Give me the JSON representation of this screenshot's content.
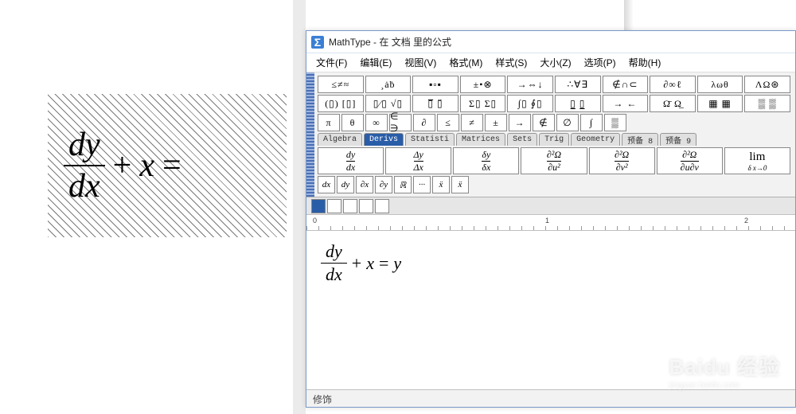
{
  "document": {
    "equation": {
      "numerator": "dy",
      "denominator": "dx",
      "op1": "+",
      "term": "x",
      "eq": "="
    }
  },
  "window": {
    "title": "MathType - 在 文档 里的公式",
    "menu": {
      "file": "文件(F)",
      "edit": "编辑(E)",
      "view": "视图(V)",
      "format": "格式(M)",
      "style": "样式(S)",
      "size": "大小(Z)",
      "options": "选项(P)",
      "help": "帮助(H)"
    },
    "palette_row1": [
      "≤≠≈",
      "¸ȧḃ",
      "▪▫▪",
      "±•⊗",
      "→⇔↓",
      "∴∀∃",
      "∉∩⊂",
      "∂∞ℓ",
      "λωθ",
      "ΛΩ⊛"
    ],
    "palette_row2": [
      "(▯) [▯]",
      "▯⁄▯ √▯",
      "▯̅ ▯̈",
      "Σ▯ Σ▯",
      "∫▯ ∮▯",
      "▯̲ ▯̲",
      "→ ←",
      "Ω̄ Ω̲",
      "▦ ▦",
      "▒ ▒"
    ],
    "palette_row3": [
      "π",
      "θ",
      "∞",
      "∈ ∋",
      "∂",
      "≤",
      "≠",
      "±",
      "→",
      "∉",
      "∅",
      "∫",
      "▒"
    ],
    "tabs": [
      "Algebra",
      "Derivs",
      "Statisti",
      "Matrices",
      "Sets",
      "Trig",
      "Geometry",
      "预备 8",
      "预备 9"
    ],
    "active_tab": 1,
    "templates": [
      {
        "num": "dy",
        "den": "dx"
      },
      {
        "num": "Δy",
        "den": "Δx"
      },
      {
        "num": "δy",
        "den": "δx"
      },
      {
        "num": "∂²Ω",
        "den": "∂u²"
      },
      {
        "num": "∂²Ω",
        "den": "∂v²"
      },
      {
        "num": "∂²Ω",
        "den": "∂u∂v"
      },
      {
        "type": "lim",
        "top": "lim",
        "bottom": "δ x→0"
      }
    ],
    "mini_buttons": [
      "dx",
      "dy",
      "∂x",
      "∂y",
      "ℝ",
      "···",
      "ẍ",
      "ẍ"
    ],
    "editor_eq": {
      "numerator": "dy",
      "denominator": "dx",
      "op1": "+",
      "term": "x",
      "eq": "=",
      "rhs": "y"
    },
    "ruler_labels": {
      "l0": "0",
      "l1": "1",
      "l2": "2"
    },
    "status": "修饰"
  },
  "watermark": {
    "brand": "Baidu 经验",
    "sub": "jingyan.baidu.com"
  }
}
